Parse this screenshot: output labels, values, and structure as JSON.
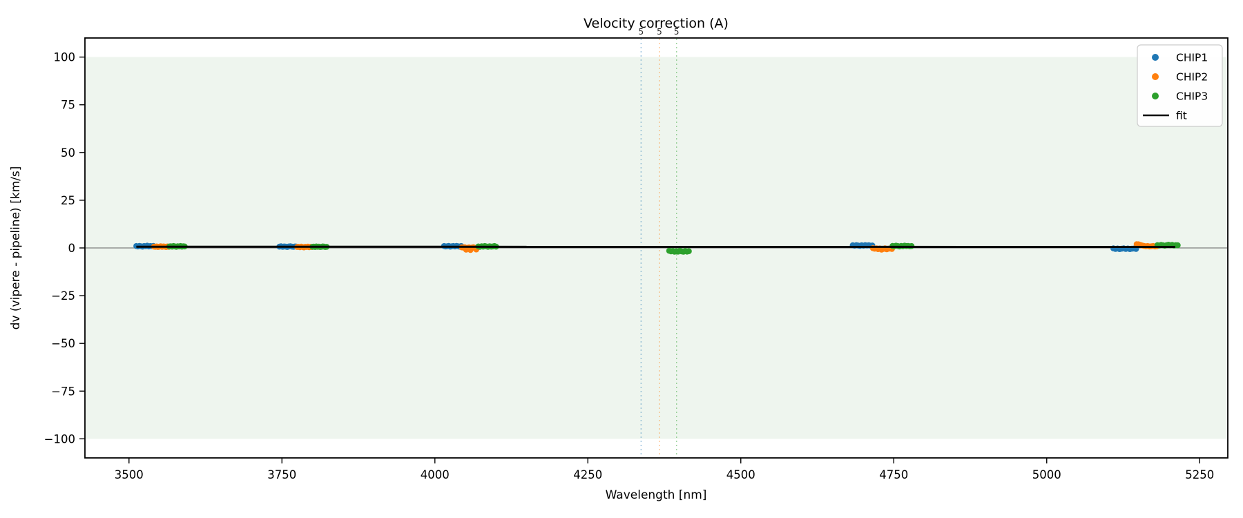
{
  "figure": {
    "title": "Velocity correction (A)",
    "xlabel": "Wavelength [nm]",
    "ylabel": "dv (vipere - pipeline) [km/s]"
  },
  "legend": {
    "position": "upper right",
    "entries": [
      {
        "label": "CHIP1",
        "marker": "dot",
        "color": "#1f77b4"
      },
      {
        "label": "CHIP2",
        "marker": "dot",
        "color": "#ff7f0e"
      },
      {
        "label": "CHIP3",
        "marker": "dot",
        "color": "#2ca02c"
      },
      {
        "label": "fit",
        "marker": "line",
        "color": "#000000"
      }
    ]
  },
  "chart_data": {
    "type": "scatter",
    "title": "Velocity correction (A)",
    "xlabel": "Wavelength [nm]",
    "ylabel": "dv (vipere - pipeline) [km/s]",
    "xlim": [
      3428,
      5296
    ],
    "ylim": [
      -110,
      110
    ],
    "xticks": [
      3500,
      3750,
      4000,
      4250,
      4500,
      4750,
      5000,
      5250
    ],
    "yticks": [
      100,
      75,
      50,
      25,
      0,
      -25,
      -50,
      -75,
      -100
    ],
    "grid": false,
    "background_band": {
      "from": -100,
      "to": 100,
      "color": "#eef5ee"
    },
    "zero_line": {
      "y": 0,
      "color": "#7f7f7f"
    },
    "vlines": [
      {
        "x": 4337,
        "label": "5",
        "color": "#1f77b4"
      },
      {
        "x": 4367,
        "label": "5",
        "color": "#ff7f0e"
      },
      {
        "x": 4395,
        "label": "5",
        "color": "#2ca02c"
      }
    ],
    "series": [
      {
        "name": "CHIP1",
        "color": "#1f77b4",
        "segments": [
          {
            "wl_start": 3512,
            "wl_end": 3540,
            "dv": [
              1.0,
              0.8,
              1.1,
              0.9,
              0.7,
              1.0,
              0.9,
              1.2,
              0.8,
              1.0,
              0.9,
              1.1
            ]
          },
          {
            "wl_start": 3746,
            "wl_end": 3774,
            "dv": [
              0.7,
              0.9,
              0.6,
              0.8,
              0.7,
              0.5,
              0.8,
              0.9,
              0.7,
              0.6,
              0.8,
              0.7
            ]
          },
          {
            "wl_start": 4015,
            "wl_end": 4043,
            "dv": [
              1.0,
              0.8,
              0.9,
              1.1,
              0.7,
              0.9,
              1.0,
              0.8,
              1.1,
              0.9,
              0.7,
              1.0
            ]
          },
          {
            "wl_start": 4683,
            "wl_end": 4715,
            "dv": [
              1.4,
              1.2,
              1.5,
              1.3,
              1.1,
              1.4,
              1.2,
              1.5,
              1.3,
              1.4,
              1.2,
              1.3
            ]
          },
          {
            "wl_start": 5109,
            "wl_end": 5146,
            "dv": [
              -0.2,
              -0.5,
              -0.3,
              -0.6,
              -0.4,
              -0.2,
              -0.5,
              -0.3,
              -0.6,
              -0.4,
              -0.3,
              -0.5
            ]
          }
        ]
      },
      {
        "name": "CHIP2",
        "color": "#ff7f0e",
        "segments": [
          {
            "wl_start": 3541,
            "wl_end": 3565,
            "dv": [
              0.7,
              0.6,
              0.8,
              0.5,
              0.7,
              0.9,
              0.6,
              0.8,
              0.7,
              0.5,
              0.8,
              0.6
            ]
          },
          {
            "wl_start": 3775,
            "wl_end": 3799,
            "dv": [
              0.5,
              0.6,
              0.4,
              0.7,
              0.5,
              0.3,
              0.6,
              0.5,
              0.7,
              0.4,
              0.6,
              0.5
            ]
          },
          {
            "wl_start": 4044,
            "wl_end": 4070,
            "dv": [
              0.3,
              0.2,
              0.4,
              -0.9,
              0.1,
              0.3,
              -1.1,
              0.2,
              0.4,
              0.1,
              -0.8,
              0.3
            ]
          },
          {
            "wl_start": 4716,
            "wl_end": 4747,
            "dv": [
              -0.1,
              -0.4,
              -0.2,
              -0.6,
              -0.3,
              -0.9,
              -0.5,
              -0.2,
              -0.7,
              -0.4,
              -0.3,
              -0.5
            ]
          },
          {
            "wl_start": 5147,
            "wl_end": 5180,
            "dv": [
              2.0,
              1.9,
              1.6,
              1.3,
              1.1,
              0.9,
              1.0,
              0.8,
              0.9,
              1.0,
              0.8,
              0.9
            ]
          }
        ]
      },
      {
        "name": "CHIP3",
        "color": "#2ca02c",
        "segments": [
          {
            "wl_start": 3566,
            "wl_end": 3591,
            "dv": [
              0.8,
              0.9,
              0.7,
              1.0,
              0.8,
              0.6,
              0.9,
              0.8,
              1.0,
              0.7,
              0.9,
              0.8
            ]
          },
          {
            "wl_start": 3800,
            "wl_end": 3823,
            "dv": [
              0.6,
              0.7,
              0.5,
              0.8,
              0.6,
              0.7,
              0.5,
              0.6,
              0.8,
              0.7,
              0.5,
              0.6
            ]
          },
          {
            "wl_start": 4071,
            "wl_end": 4100,
            "dv": [
              0.8,
              0.6,
              0.9,
              0.7,
              1.0,
              0.8,
              0.6,
              0.9,
              0.7,
              0.8,
              1.0,
              0.7
            ]
          },
          {
            "wl_start": 4383,
            "wl_end": 4415,
            "dv": [
              -1.5,
              -1.8,
              -1.6,
              -2.0,
              -1.7,
              -1.9,
              -1.5,
              -1.8,
              -2.0,
              -1.6,
              -1.9,
              -1.7
            ]
          },
          {
            "wl_start": 4748,
            "wl_end": 4779,
            "dv": [
              1.1,
              0.9,
              1.2,
              1.0,
              0.8,
              1.1,
              0.9,
              1.2,
              1.0,
              1.1,
              0.9,
              1.0
            ]
          },
          {
            "wl_start": 5181,
            "wl_end": 5214,
            "dv": [
              1.5,
              1.3,
              1.6,
              1.4,
              1.2,
              1.5,
              1.7,
              1.4,
              1.6,
              1.3,
              1.5,
              1.4
            ]
          }
        ]
      }
    ],
    "fit_line": {
      "name": "fit",
      "color": "#000000",
      "points": [
        [
          3512,
          0.65
        ],
        [
          5210,
          0.55
        ]
      ]
    }
  }
}
